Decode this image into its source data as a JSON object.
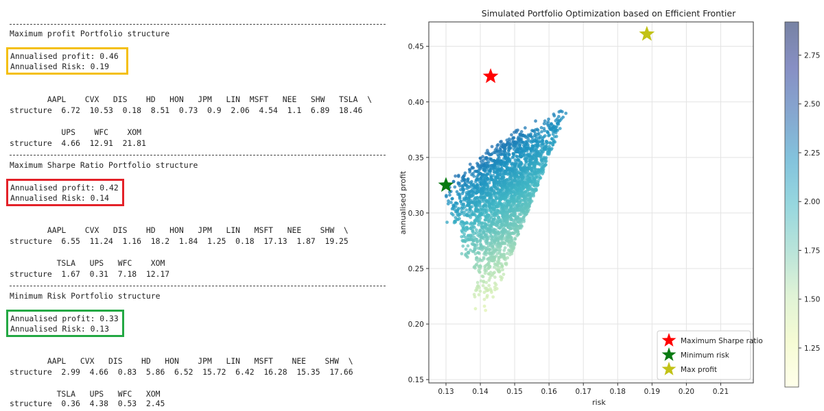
{
  "colors": {
    "max_profit_box": "#f4bf0a",
    "max_sharpe_box": "#e32128",
    "min_risk_box": "#23a843"
  },
  "sections": [
    {
      "title": "Maximum profit Portfolio structure",
      "profit": "Annualised profit: 0.46",
      "risk": "Annualised Risk: 0.19",
      "tables": [
        {
          "header": "        AAPL    CVX   DIS    HD   HON   JPM   LIN  MSFT   NEE   SHW   TSLA  \\",
          "row": "structure  6.72  10.53  0.18  8.51  0.73  0.9  2.06  4.54  1.1  6.89  18.46"
        },
        {
          "header": "           UPS    WFC    XOM",
          "row": "structure  4.66  12.91  21.81"
        }
      ]
    },
    {
      "title": "Maximum Sharpe Ratio Portfolio structure",
      "profit": "Annualised profit: 0.42",
      "risk": "Annualised Risk: 0.14",
      "tables": [
        {
          "header": "        AAPL    CVX   DIS    HD   HON   JPM   LIN   MSFT   NEE    SHW  \\",
          "row": "structure  6.55  11.24  1.16  18.2  1.84  1.25  0.18  17.13  1.87  19.25"
        },
        {
          "header": "          TSLA   UPS   WFC    XOM",
          "row": "structure  1.67  0.31  7.18  12.17"
        }
      ]
    },
    {
      "title": "Minimum Risk Portfolio structure",
      "profit": "Annualised profit: 0.33",
      "risk": "Annualised Risk: 0.13",
      "tables": [
        {
          "header": "        AAPL   CVX   DIS    HD   HON    JPM   LIN   MSFT    NEE    SHW  \\",
          "row": "structure  2.99  4.66  0.83  5.86  6.52  15.72  6.42  16.28  15.35  17.66"
        },
        {
          "header": "          TSLA   UPS   WFC   XOM",
          "row": "structure  0.36  4.38  0.53  2.45"
        }
      ]
    }
  ],
  "chart_data": {
    "type": "scatter",
    "title": "Simulated Portfolio Optimization based on Efficient Frontier",
    "xlabel": "risk",
    "ylabel": "annualised profit",
    "xlim": [
      0.125,
      0.2195
    ],
    "ylim": [
      0.147,
      0.472
    ],
    "xticks": [
      "0.13",
      "0.14",
      "0.15",
      "0.16",
      "0.17",
      "0.18",
      "0.19",
      "0.20",
      "0.21"
    ],
    "yticks": [
      "0.15",
      "0.20",
      "0.25",
      "0.30",
      "0.35",
      "0.40",
      "0.45"
    ],
    "colorbar": {
      "range": [
        1.05,
        2.92
      ],
      "ticks": [
        "1.25",
        "1.50",
        "1.75",
        "2.00",
        "2.25",
        "2.50",
        "2.75"
      ],
      "colormap": "YlGnBu"
    },
    "grid": true,
    "legend_position": "lower-right",
    "markers": [
      {
        "name": "Maximum Sharpe ratio",
        "x": 0.143,
        "y": 0.423,
        "color": "#ff0000"
      },
      {
        "name": "Minimum risk",
        "x": 0.13,
        "y": 0.325,
        "color": "#0a7a12"
      },
      {
        "name": "Max profit",
        "x": 0.1885,
        "y": 0.461,
        "color": "#c2c217"
      }
    ]
  }
}
